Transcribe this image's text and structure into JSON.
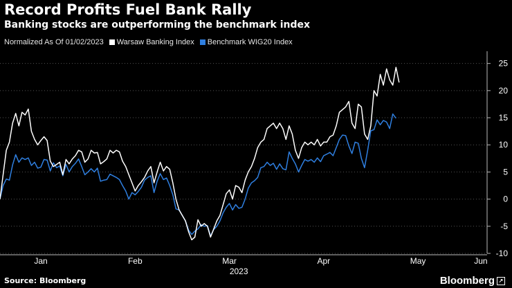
{
  "header": {
    "title": "Record Profits Fuel Bank Rally",
    "subtitle": "Banking stocks are outperforming the benchmark index"
  },
  "legend": {
    "note": "Normalized As Of 01/02/2023"
  },
  "footer": {
    "source": "Source: Bloomberg",
    "brand": "Bloomberg"
  },
  "chart_data": {
    "type": "line",
    "xlabel": "2023",
    "ylabel": "",
    "xlim": [
      "2023-01-02",
      "2023-06-06"
    ],
    "ylim": [
      -10,
      27
    ],
    "yticks": [
      -10,
      -5,
      0,
      5,
      10,
      15,
      20,
      25
    ],
    "xticks": [
      {
        "label": "Jan",
        "date": "2023-01-15"
      },
      {
        "label": "Feb",
        "date": "2023-02-14"
      },
      {
        "label": "Mar",
        "date": "2023-03-16"
      },
      {
        "label": "Apr",
        "date": "2023-04-15"
      },
      {
        "label": "May",
        "date": "2023-05-15"
      },
      {
        "label": "Jun",
        "date": "2023-06-04"
      }
    ],
    "grid": true,
    "legend_position": "top-left",
    "colors": {
      "background": "#000000",
      "banking": "#ffffff",
      "wig20": "#2f7fe0",
      "grid": "#555555"
    },
    "series": [
      {
        "name": "Warsaw Banking Index",
        "color": "#ffffff",
        "points": [
          [
            "2023-01-02",
            0
          ],
          [
            "2023-01-03",
            4.5
          ],
          [
            "2023-01-04",
            9
          ],
          [
            "2023-01-05",
            10.5
          ],
          [
            "2023-01-06",
            14
          ],
          [
            "2023-01-07",
            15.8
          ],
          [
            "2023-01-08",
            13.5
          ],
          [
            "2023-01-09",
            16
          ],
          [
            "2023-01-10",
            15.5
          ],
          [
            "2023-01-11",
            16.6
          ],
          [
            "2023-01-12",
            12.5
          ],
          [
            "2023-01-13",
            11
          ],
          [
            "2023-01-14",
            10
          ],
          [
            "2023-01-15",
            10.8
          ],
          [
            "2023-01-16",
            11.5
          ],
          [
            "2023-01-17",
            10.8
          ],
          [
            "2023-01-18",
            7
          ],
          [
            "2023-01-19",
            6
          ],
          [
            "2023-01-20",
            6.4
          ],
          [
            "2023-01-21",
            6.8
          ],
          [
            "2023-01-22",
            4.5
          ],
          [
            "2023-01-23",
            7.3
          ],
          [
            "2023-01-24",
            6.5
          ],
          [
            "2023-01-25",
            7.4
          ],
          [
            "2023-01-26",
            8
          ],
          [
            "2023-01-27",
            9
          ],
          [
            "2023-01-28",
            8.7
          ],
          [
            "2023-01-29",
            6.8
          ],
          [
            "2023-01-30",
            7.4
          ],
          [
            "2023-01-31",
            9
          ],
          [
            "2023-02-01",
            8.5
          ],
          [
            "2023-02-02",
            8.6
          ],
          [
            "2023-02-03",
            6.5
          ],
          [
            "2023-02-04",
            6.9
          ],
          [
            "2023-02-05",
            7.4
          ],
          [
            "2023-02-06",
            9
          ],
          [
            "2023-02-07",
            8.5
          ],
          [
            "2023-02-08",
            9
          ],
          [
            "2023-02-09",
            8.7
          ],
          [
            "2023-02-10",
            7
          ],
          [
            "2023-02-11",
            6
          ],
          [
            "2023-02-12",
            4.5
          ],
          [
            "2023-02-13",
            3
          ],
          [
            "2023-02-14",
            1.5
          ],
          [
            "2023-02-15",
            2.5
          ],
          [
            "2023-02-16",
            3.2
          ],
          [
            "2023-02-17",
            4
          ],
          [
            "2023-02-18",
            5.2
          ],
          [
            "2023-02-19",
            6
          ],
          [
            "2023-02-20",
            3
          ],
          [
            "2023-02-21",
            5
          ],
          [
            "2023-02-22",
            6.8
          ],
          [
            "2023-02-23",
            5.2
          ],
          [
            "2023-02-24",
            6
          ],
          [
            "2023-02-25",
            5.5
          ],
          [
            "2023-02-26",
            3
          ],
          [
            "2023-02-27",
            0
          ],
          [
            "2023-02-28",
            -2
          ],
          [
            "2023-03-01",
            -3
          ],
          [
            "2023-03-02",
            -4
          ],
          [
            "2023-03-03",
            -6
          ],
          [
            "2023-03-04",
            -7.5
          ],
          [
            "2023-03-05",
            -7
          ],
          [
            "2023-03-06",
            -3.8
          ],
          [
            "2023-03-07",
            -5
          ],
          [
            "2023-03-08",
            -4.5
          ],
          [
            "2023-03-09",
            -5
          ],
          [
            "2023-03-10",
            -7
          ],
          [
            "2023-03-11",
            -5.5
          ],
          [
            "2023-03-12",
            -4
          ],
          [
            "2023-03-13",
            -3
          ],
          [
            "2023-03-14",
            -1
          ],
          [
            "2023-03-15",
            1
          ],
          [
            "2023-03-16",
            1.7
          ],
          [
            "2023-03-17",
            0
          ],
          [
            "2023-03-18",
            2.5
          ],
          [
            "2023-03-19",
            2.2
          ],
          [
            "2023-03-20",
            1.2
          ],
          [
            "2023-03-21",
            3.5
          ],
          [
            "2023-03-22",
            5
          ],
          [
            "2023-03-23",
            6
          ],
          [
            "2023-03-24",
            7.5
          ],
          [
            "2023-03-25",
            9.5
          ],
          [
            "2023-03-26",
            10.5
          ],
          [
            "2023-03-27",
            11
          ],
          [
            "2023-03-28",
            13
          ],
          [
            "2023-03-29",
            13.5
          ],
          [
            "2023-03-30",
            14
          ],
          [
            "2023-03-31",
            13
          ],
          [
            "2023-04-01",
            14
          ],
          [
            "2023-04-02",
            13
          ],
          [
            "2023-04-03",
            11
          ],
          [
            "2023-04-04",
            13.5
          ],
          [
            "2023-04-05",
            12
          ],
          [
            "2023-04-06",
            9
          ],
          [
            "2023-04-07",
            7.5
          ],
          [
            "2023-04-08",
            9.5
          ],
          [
            "2023-04-09",
            10.5
          ],
          [
            "2023-04-10",
            10
          ],
          [
            "2023-04-11",
            10.5
          ],
          [
            "2023-04-12",
            10
          ],
          [
            "2023-04-13",
            11
          ],
          [
            "2023-04-14",
            9.8
          ],
          [
            "2023-04-15",
            10.5
          ],
          [
            "2023-04-16",
            10.5
          ],
          [
            "2023-04-17",
            11.5
          ],
          [
            "2023-04-18",
            11.8
          ],
          [
            "2023-04-19",
            13.5
          ],
          [
            "2023-04-20",
            16
          ],
          [
            "2023-04-21",
            16.5
          ],
          [
            "2023-04-22",
            17
          ],
          [
            "2023-04-23",
            18
          ],
          [
            "2023-04-24",
            14
          ],
          [
            "2023-04-25",
            13
          ],
          [
            "2023-04-26",
            17.5
          ],
          [
            "2023-04-27",
            17
          ],
          [
            "2023-04-28",
            12
          ],
          [
            "2023-04-29",
            11
          ],
          [
            "2023-04-30",
            13.5
          ],
          [
            "2023-05-01",
            20
          ],
          [
            "2023-05-02",
            19
          ],
          [
            "2023-05-03",
            23
          ],
          [
            "2023-05-04",
            21
          ],
          [
            "2023-05-05",
            24
          ],
          [
            "2023-05-06",
            22
          ],
          [
            "2023-05-07",
            21
          ],
          [
            "2023-05-08",
            24.3
          ],
          [
            "2023-05-09",
            21.5
          ]
        ]
      },
      {
        "name": "Benchmark WIG20 Index",
        "color": "#2f7fe0",
        "points": [
          [
            "2023-01-02",
            0
          ],
          [
            "2023-01-03",
            2.5
          ],
          [
            "2023-01-04",
            3.7
          ],
          [
            "2023-01-05",
            3.5
          ],
          [
            "2023-01-06",
            6.3
          ],
          [
            "2023-01-07",
            8.2
          ],
          [
            "2023-01-08",
            6.8
          ],
          [
            "2023-01-09",
            7.6
          ],
          [
            "2023-01-10",
            7.3
          ],
          [
            "2023-01-11",
            7.6
          ],
          [
            "2023-01-12",
            6.2
          ],
          [
            "2023-01-13",
            6.8
          ],
          [
            "2023-01-14",
            5.7
          ],
          [
            "2023-01-15",
            5.9
          ],
          [
            "2023-01-16",
            7.3
          ],
          [
            "2023-01-17",
            7.2
          ],
          [
            "2023-01-18",
            5.2
          ],
          [
            "2023-01-19",
            6.7
          ],
          [
            "2023-01-20",
            5.8
          ],
          [
            "2023-01-21",
            6.1
          ],
          [
            "2023-01-22",
            4.3
          ],
          [
            "2023-01-23",
            6.4
          ],
          [
            "2023-01-24",
            5
          ],
          [
            "2023-01-25",
            6
          ],
          [
            "2023-01-26",
            6.6
          ],
          [
            "2023-01-27",
            7.4
          ],
          [
            "2023-01-28",
            6
          ],
          [
            "2023-01-29",
            4.5
          ],
          [
            "2023-01-30",
            5
          ],
          [
            "2023-01-31",
            5.6
          ],
          [
            "2023-02-01",
            5
          ],
          [
            "2023-02-02",
            5.7
          ],
          [
            "2023-02-03",
            3.3
          ],
          [
            "2023-02-04",
            3.5
          ],
          [
            "2023-02-05",
            3.6
          ],
          [
            "2023-02-06",
            4.6
          ],
          [
            "2023-02-07",
            4.3
          ],
          [
            "2023-02-08",
            4
          ],
          [
            "2023-02-09",
            3.6
          ],
          [
            "2023-02-10",
            2.5
          ],
          [
            "2023-02-11",
            1.5
          ],
          [
            "2023-02-12",
            0
          ],
          [
            "2023-02-13",
            1.2
          ],
          [
            "2023-02-14",
            0.8
          ],
          [
            "2023-02-15",
            1.4
          ],
          [
            "2023-02-16",
            2.2
          ],
          [
            "2023-02-17",
            3.5
          ],
          [
            "2023-02-18",
            4
          ],
          [
            "2023-02-19",
            4.3
          ],
          [
            "2023-02-20",
            1.2
          ],
          [
            "2023-02-21",
            3.3
          ],
          [
            "2023-02-22",
            4.7
          ],
          [
            "2023-02-23",
            3.6
          ],
          [
            "2023-02-24",
            3.9
          ],
          [
            "2023-02-25",
            2.5
          ],
          [
            "2023-02-26",
            0.8
          ],
          [
            "2023-02-27",
            -1.8
          ],
          [
            "2023-02-28",
            -2
          ],
          [
            "2023-03-01",
            -3
          ],
          [
            "2023-03-02",
            -4
          ],
          [
            "2023-03-03",
            -5.7
          ],
          [
            "2023-03-04",
            -6.5
          ],
          [
            "2023-03-05",
            -5.9
          ],
          [
            "2023-03-06",
            -5.5
          ],
          [
            "2023-03-07",
            -4.7
          ],
          [
            "2023-03-08",
            -5
          ],
          [
            "2023-03-09",
            -4.9
          ],
          [
            "2023-03-10",
            -6.8
          ],
          [
            "2023-03-11",
            -5.6
          ],
          [
            "2023-03-12",
            -5
          ],
          [
            "2023-03-13",
            -4
          ],
          [
            "2023-03-14",
            -2.5
          ],
          [
            "2023-03-15",
            -1.5
          ],
          [
            "2023-03-16",
            -0.8
          ],
          [
            "2023-03-17",
            -2
          ],
          [
            "2023-03-18",
            -1
          ],
          [
            "2023-03-19",
            -1.7
          ],
          [
            "2023-03-20",
            -1.5
          ],
          [
            "2023-03-21",
            0
          ],
          [
            "2023-03-22",
            2
          ],
          [
            "2023-03-23",
            3
          ],
          [
            "2023-03-24",
            3.4
          ],
          [
            "2023-03-25",
            4
          ],
          [
            "2023-03-26",
            5.8
          ],
          [
            "2023-03-27",
            6
          ],
          [
            "2023-03-28",
            6.8
          ],
          [
            "2023-03-29",
            6.2
          ],
          [
            "2023-03-30",
            6.6
          ],
          [
            "2023-03-31",
            5.5
          ],
          [
            "2023-04-01",
            6.5
          ],
          [
            "2023-04-02",
            5.6
          ],
          [
            "2023-04-03",
            5.4
          ],
          [
            "2023-04-04",
            8.7
          ],
          [
            "2023-04-05",
            7.5
          ],
          [
            "2023-04-06",
            6.5
          ],
          [
            "2023-04-07",
            5
          ],
          [
            "2023-04-08",
            6.2
          ],
          [
            "2023-04-09",
            7.3
          ],
          [
            "2023-04-10",
            7
          ],
          [
            "2023-04-11",
            7.3
          ],
          [
            "2023-04-12",
            6.8
          ],
          [
            "2023-04-13",
            7.6
          ],
          [
            "2023-04-14",
            6.9
          ],
          [
            "2023-04-15",
            8
          ],
          [
            "2023-04-16",
            8.3
          ],
          [
            "2023-04-17",
            8.6
          ],
          [
            "2023-04-18",
            8
          ],
          [
            "2023-04-19",
            9.5
          ],
          [
            "2023-04-20",
            11
          ],
          [
            "2023-04-21",
            11.8
          ],
          [
            "2023-04-22",
            11.7
          ],
          [
            "2023-04-23",
            9.8
          ],
          [
            "2023-04-24",
            8.4
          ],
          [
            "2023-04-25",
            10.5
          ],
          [
            "2023-04-26",
            10.3
          ],
          [
            "2023-04-27",
            7.5
          ],
          [
            "2023-04-28",
            5.8
          ],
          [
            "2023-04-29",
            9
          ],
          [
            "2023-04-30",
            12.6
          ],
          [
            "2023-05-01",
            12.8
          ],
          [
            "2023-05-02",
            14.6
          ],
          [
            "2023-05-03",
            13.7
          ],
          [
            "2023-05-04",
            14.5
          ],
          [
            "2023-05-05",
            14.2
          ],
          [
            "2023-05-06",
            13
          ],
          [
            "2023-05-07",
            15.7
          ],
          [
            "2023-05-08",
            14.9
          ]
        ]
      }
    ]
  }
}
